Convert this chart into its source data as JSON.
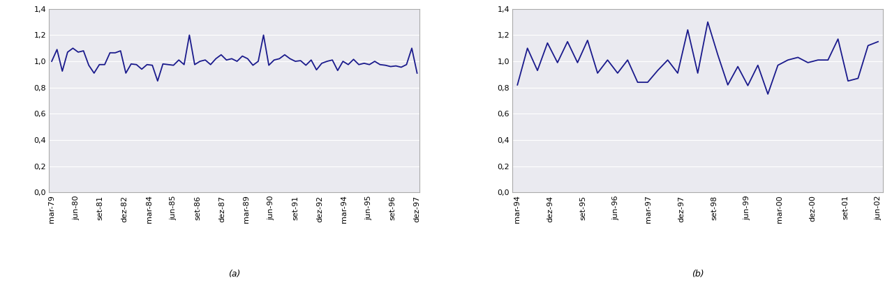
{
  "chart_a": {
    "x_labels": [
      "mar-79",
      "jun-80",
      "set-81",
      "dez-82",
      "mar-84",
      "jun-85",
      "set-86",
      "dez-87",
      "mar-89",
      "jun-90",
      "set-91",
      "dez-92",
      "mar-94",
      "jun-95",
      "set-96",
      "dez-97"
    ],
    "y_values": [
      1.0,
      1.09,
      0.925,
      1.07,
      1.1,
      1.07,
      1.08,
      0.97,
      0.91,
      0.975,
      0.975,
      1.065,
      1.065,
      1.08,
      0.91,
      0.98,
      0.975,
      0.94,
      0.975,
      0.97,
      0.85,
      0.98,
      0.975,
      0.97,
      1.01,
      0.975,
      1.2,
      0.975,
      1.0,
      1.01,
      0.975,
      1.02,
      1.05,
      1.01,
      1.02,
      1.0,
      1.04,
      1.02,
      0.97,
      1.0,
      1.2,
      0.97,
      1.01,
      1.02,
      1.05,
      1.02,
      1.0,
      1.005,
      0.97,
      1.01,
      0.935,
      0.985,
      1.0,
      1.01,
      0.93,
      1.0,
      0.975,
      1.015,
      0.975,
      0.985,
      0.975,
      1.0,
      0.975,
      0.97,
      0.96,
      0.965,
      0.955,
      0.975,
      1.1,
      0.91
    ],
    "label": "(a)",
    "ylim": [
      0.0,
      1.4
    ],
    "yticks": [
      0.0,
      0.2,
      0.4,
      0.6,
      0.8,
      1.0,
      1.2,
      1.4
    ],
    "ytick_labels": [
      "0,0",
      "0,2",
      "0,4",
      "0,6",
      "0,8",
      "1,0",
      "1,2",
      "1,4"
    ]
  },
  "chart_b": {
    "x_labels": [
      "mar-94",
      "dez-94",
      "set-95",
      "jun-96",
      "mar-97",
      "dez-97",
      "set-98",
      "jun-99",
      "mar-00",
      "dez-00",
      "set-01",
      "jun-02"
    ],
    "y_values": [
      0.82,
      1.1,
      0.93,
      1.14,
      0.99,
      1.15,
      0.99,
      1.16,
      0.91,
      1.01,
      0.91,
      1.01,
      0.84,
      0.84,
      0.93,
      1.01,
      0.91,
      1.24,
      0.91,
      1.3,
      1.05,
      0.82,
      0.96,
      0.815,
      0.97,
      0.75,
      0.97,
      1.01,
      1.03,
      0.99,
      1.01,
      1.01,
      1.17,
      0.85,
      0.87,
      1.12,
      1.15
    ],
    "label": "(b)",
    "ylim": [
      0.0,
      1.4
    ],
    "yticks": [
      0.0,
      0.2,
      0.4,
      0.6,
      0.8,
      1.0,
      1.2,
      1.4
    ],
    "ytick_labels": [
      "0,0",
      "0,2",
      "0,4",
      "0,6",
      "0,8",
      "1,0",
      "1,2",
      "1,4"
    ]
  },
  "line_color": "#1a1a8c",
  "line_width": 1.3,
  "plot_bg_color": "#eaeaf0",
  "fig_bg_color": "#ffffff",
  "grid_color": "#ffffff",
  "spine_color": "#aaaaaa",
  "label_fontsize": 9,
  "tick_fontsize": 8
}
